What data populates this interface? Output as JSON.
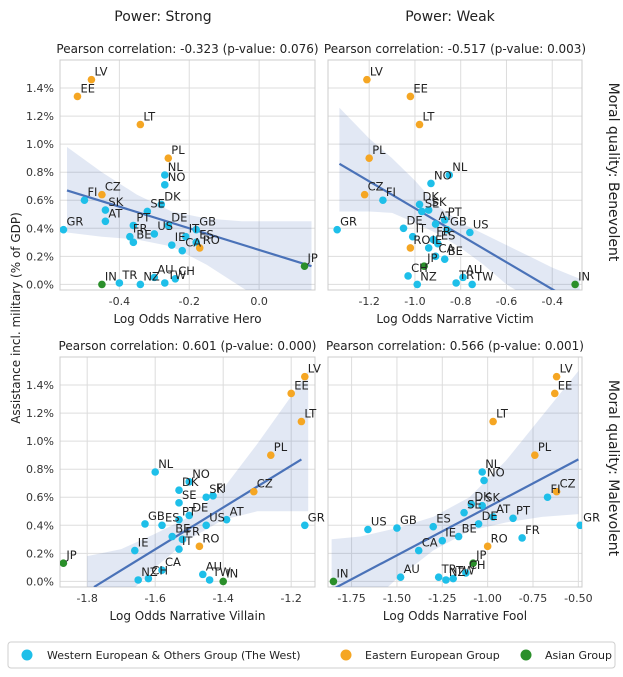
{
  "figure": {
    "col_titles": [
      "Power: Strong",
      "Power: Weak"
    ],
    "row_titles": [
      "Moral quality: Benevolent",
      "Moral quality: Malevolent"
    ],
    "ylabel": "Assistance incl. military (% of GDP)",
    "ylim": [
      -0.04,
      1.6
    ],
    "yticks": [
      0.0,
      0.2,
      0.4,
      0.6,
      0.8,
      1.0,
      1.2,
      1.4
    ],
    "ytick_labels": [
      "0.0%",
      "0.2%",
      "0.4%",
      "0.6%",
      "0.8%",
      "1.0%",
      "1.2%",
      "1.4%"
    ]
  },
  "legend": {
    "items": [
      {
        "label": "Western European & Others Group (The West)",
        "color": "#1ebfe9"
      },
      {
        "label": "Eastern European Group",
        "color": "#f5a623"
      },
      {
        "label": "Asian Group",
        "color": "#2a8f2a"
      }
    ]
  },
  "chart_data": [
    {
      "type": "scatter",
      "title": "Pearson correlation: -0.323 (p-value: 0.076)",
      "xlabel": "Log Odds Narrative Hero",
      "xlim": [
        -0.57,
        0.16
      ],
      "xticks": [
        -0.4,
        -0.2,
        0.0
      ],
      "xtick_labels": [
        "-0.4",
        "-0.2",
        "0.0"
      ],
      "regression": {
        "x0": -0.55,
        "y0": 0.67,
        "x1": 0.15,
        "y1": 0.13
      },
      "band": [
        [
          -0.55,
          0.98,
          0.37
        ],
        [
          -0.45,
          0.8,
          0.34
        ],
        [
          -0.35,
          0.64,
          0.32
        ],
        [
          -0.25,
          0.52,
          0.27
        ],
        [
          -0.15,
          0.47,
          0.14
        ],
        [
          -0.05,
          0.45,
          -0.02
        ],
        [
          0.05,
          0.45,
          -0.18
        ],
        [
          0.15,
          0.45,
          -0.33
        ]
      ],
      "points": [
        {
          "c": "LV",
          "x": -0.48,
          "y": 1.46,
          "g": 1
        },
        {
          "c": "EE",
          "x": -0.52,
          "y": 1.34,
          "g": 1
        },
        {
          "c": "LT",
          "x": -0.34,
          "y": 1.14,
          "g": 1
        },
        {
          "c": "PL",
          "x": -0.26,
          "y": 0.9,
          "g": 1
        },
        {
          "c": "NL",
          "x": -0.27,
          "y": 0.78,
          "g": 0
        },
        {
          "c": "NO",
          "x": -0.27,
          "y": 0.71,
          "g": 0
        },
        {
          "c": "CZ",
          "x": -0.45,
          "y": 0.64,
          "g": 1
        },
        {
          "c": "FI",
          "x": -0.5,
          "y": 0.6,
          "g": 0
        },
        {
          "c": "DK",
          "x": -0.28,
          "y": 0.57,
          "g": 0
        },
        {
          "c": "SK",
          "x": -0.44,
          "y": 0.53,
          "g": 0
        },
        {
          "c": "SE",
          "x": -0.32,
          "y": 0.52,
          "g": 0
        },
        {
          "c": "AT",
          "x": -0.44,
          "y": 0.45,
          "g": 0
        },
        {
          "c": "PT",
          "x": -0.36,
          "y": 0.42,
          "g": 0
        },
        {
          "c": "DE",
          "x": -0.26,
          "y": 0.42,
          "g": 0
        },
        {
          "c": "GB",
          "x": -0.18,
          "y": 0.39,
          "g": 0
        },
        {
          "c": "GR",
          "x": -0.56,
          "y": 0.39,
          "g": 0
        },
        {
          "c": "US",
          "x": -0.3,
          "y": 0.36,
          "g": 0
        },
        {
          "c": "FR",
          "x": -0.37,
          "y": 0.34,
          "g": 0
        },
        {
          "c": "IT",
          "x": -0.21,
          "y": 0.34,
          "g": 0
        },
        {
          "c": "BE",
          "x": -0.36,
          "y": 0.3,
          "g": 0
        },
        {
          "c": "ES",
          "x": -0.18,
          "y": 0.3,
          "g": 0
        },
        {
          "c": "IE",
          "x": -0.25,
          "y": 0.28,
          "g": 0
        },
        {
          "c": "RO",
          "x": -0.17,
          "y": 0.26,
          "g": 1
        },
        {
          "c": "CA",
          "x": -0.22,
          "y": 0.24,
          "g": 0
        },
        {
          "c": "AU",
          "x": -0.3,
          "y": 0.05,
          "g": 0
        },
        {
          "c": "CH",
          "x": -0.24,
          "y": 0.04,
          "g": 0
        },
        {
          "c": "TR",
          "x": -0.4,
          "y": 0.01,
          "g": 0
        },
        {
          "c": "NZ",
          "x": -0.34,
          "y": 0.0,
          "g": 0
        },
        {
          "c": "TW",
          "x": -0.27,
          "y": 0.01,
          "g": 0
        },
        {
          "c": "IN",
          "x": -0.45,
          "y": 0.0,
          "g": 2
        },
        {
          "c": "JP",
          "x": 0.13,
          "y": 0.13,
          "g": 2
        }
      ]
    },
    {
      "type": "scatter",
      "title": "Pearson correlation: -0.517 (p-value: 0.003)",
      "xlabel": "Log Odds Narrative Victim",
      "xlim": [
        -1.38,
        -0.27
      ],
      "xticks": [
        -1.2,
        -1.0,
        -0.8,
        -0.6,
        -0.4
      ],
      "xtick_labels": [
        "-1.2",
        "-1.0",
        "-0.8",
        "-0.6",
        "-0.4"
      ],
      "regression": {
        "x0": -1.33,
        "y0": 0.86,
        "x1": -0.28,
        "y1": -0.15
      },
      "band": [
        [
          -1.33,
          1.26,
          0.52
        ],
        [
          -1.2,
          1.04,
          0.52
        ],
        [
          -1.1,
          0.9,
          0.51
        ],
        [
          -1.0,
          0.74,
          0.44
        ],
        [
          -0.9,
          0.56,
          0.36
        ],
        [
          -0.8,
          0.44,
          0.26
        ],
        [
          -0.7,
          0.36,
          0.14
        ],
        [
          -0.6,
          0.28,
          0.0
        ],
        [
          -0.5,
          0.2,
          -0.1
        ],
        [
          -0.4,
          0.12,
          -0.2
        ],
        [
          -0.28,
          0.04,
          -0.3
        ]
      ],
      "points": [
        {
          "c": "LV",
          "x": -1.21,
          "y": 1.46,
          "g": 1
        },
        {
          "c": "EE",
          "x": -1.02,
          "y": 1.34,
          "g": 1
        },
        {
          "c": "LT",
          "x": -0.98,
          "y": 1.14,
          "g": 1
        },
        {
          "c": "PL",
          "x": -1.2,
          "y": 0.9,
          "g": 1
        },
        {
          "c": "NL",
          "x": -0.85,
          "y": 0.78,
          "g": 0
        },
        {
          "c": "NO",
          "x": -0.93,
          "y": 0.72,
          "g": 0
        },
        {
          "c": "CZ",
          "x": -1.22,
          "y": 0.64,
          "g": 1
        },
        {
          "c": "FI",
          "x": -1.14,
          "y": 0.6,
          "g": 0
        },
        {
          "c": "DK",
          "x": -0.98,
          "y": 0.57,
          "g": 0
        },
        {
          "c": "SK",
          "x": -0.94,
          "y": 0.53,
          "g": 0
        },
        {
          "c": "SE",
          "x": -0.97,
          "y": 0.52,
          "g": 0
        },
        {
          "c": "PT",
          "x": -0.87,
          "y": 0.46,
          "g": 0
        },
        {
          "c": "AT",
          "x": -0.91,
          "y": 0.43,
          "g": 0
        },
        {
          "c": "DE",
          "x": -1.05,
          "y": 0.4,
          "g": 0
        },
        {
          "c": "GB",
          "x": -0.86,
          "y": 0.39,
          "g": 0
        },
        {
          "c": "US",
          "x": -0.76,
          "y": 0.37,
          "g": 0
        },
        {
          "c": "GR",
          "x": -1.34,
          "y": 0.39,
          "g": 0
        },
        {
          "c": "IT",
          "x": -1.01,
          "y": 0.34,
          "g": 0
        },
        {
          "c": "FR",
          "x": -0.92,
          "y": 0.32,
          "g": 0
        },
        {
          "c": "ES",
          "x": -0.9,
          "y": 0.29,
          "g": 0
        },
        {
          "c": "RO",
          "x": -1.02,
          "y": 0.26,
          "g": 1
        },
        {
          "c": "IE",
          "x": -0.94,
          "y": 0.26,
          "g": 0
        },
        {
          "c": "CA",
          "x": -0.91,
          "y": 0.2,
          "g": 0
        },
        {
          "c": "BE",
          "x": -0.87,
          "y": 0.18,
          "g": 0
        },
        {
          "c": "CH",
          "x": -1.03,
          "y": 0.06,
          "g": 0
        },
        {
          "c": "JP",
          "x": -0.96,
          "y": 0.13,
          "g": 2
        },
        {
          "c": "AU",
          "x": -0.79,
          "y": 0.05,
          "g": 0
        },
        {
          "c": "NZ",
          "x": -0.99,
          "y": 0.0,
          "g": 0
        },
        {
          "c": "TR",
          "x": -0.82,
          "y": 0.01,
          "g": 0
        },
        {
          "c": "TW",
          "x": -0.75,
          "y": 0.0,
          "g": 0
        },
        {
          "c": "IN",
          "x": -0.3,
          "y": 0.0,
          "g": 2
        }
      ]
    },
    {
      "type": "scatter",
      "title": "Pearson correlation: 0.601 (p-value: 0.000)",
      "xlabel": "Log Odds Narrative Villain",
      "xlim": [
        -1.88,
        -1.13
      ],
      "xticks": [
        -1.8,
        -1.6,
        -1.4,
        -1.2
      ],
      "xtick_labels": [
        "-1.8",
        "-1.6",
        "-1.4",
        "-1.2"
      ],
      "regression": {
        "x0": -1.78,
        "y0": -0.04,
        "x1": -1.17,
        "y1": 0.87
      },
      "band": [
        [
          -1.8,
          0.18,
          -0.4
        ],
        [
          -1.7,
          0.23,
          -0.14
        ],
        [
          -1.6,
          0.34,
          0.1
        ],
        [
          -1.5,
          0.46,
          0.3
        ],
        [
          -1.4,
          0.66,
          0.44
        ],
        [
          -1.3,
          0.98,
          0.5
        ],
        [
          -1.2,
          1.32,
          0.5
        ],
        [
          -1.15,
          1.5,
          0.5
        ]
      ],
      "points": [
        {
          "c": "LV",
          "x": -1.16,
          "y": 1.46,
          "g": 1
        },
        {
          "c": "EE",
          "x": -1.2,
          "y": 1.34,
          "g": 1
        },
        {
          "c": "LT",
          "x": -1.17,
          "y": 1.14,
          "g": 1
        },
        {
          "c": "PL",
          "x": -1.26,
          "y": 0.9,
          "g": 1
        },
        {
          "c": "NL",
          "x": -1.6,
          "y": 0.78,
          "g": 0
        },
        {
          "c": "NO",
          "x": -1.5,
          "y": 0.71,
          "g": 0
        },
        {
          "c": "DK",
          "x": -1.53,
          "y": 0.65,
          "g": 0
        },
        {
          "c": "FI",
          "x": -1.43,
          "y": 0.61,
          "g": 0
        },
        {
          "c": "SK",
          "x": -1.45,
          "y": 0.6,
          "g": 0
        },
        {
          "c": "CZ",
          "x": -1.31,
          "y": 0.64,
          "g": 1
        },
        {
          "c": "SE",
          "x": -1.53,
          "y": 0.56,
          "g": 0
        },
        {
          "c": "DE",
          "x": -1.5,
          "y": 0.47,
          "g": 0
        },
        {
          "c": "PT",
          "x": -1.53,
          "y": 0.44,
          "g": 0
        },
        {
          "c": "AT",
          "x": -1.39,
          "y": 0.44,
          "g": 0
        },
        {
          "c": "GB",
          "x": -1.63,
          "y": 0.41,
          "g": 0
        },
        {
          "c": "ES",
          "x": -1.58,
          "y": 0.4,
          "g": 0
        },
        {
          "c": "US",
          "x": -1.45,
          "y": 0.4,
          "g": 0
        },
        {
          "c": "GR",
          "x": -1.16,
          "y": 0.4,
          "g": 0
        },
        {
          "c": "BE",
          "x": -1.55,
          "y": 0.32,
          "g": 0
        },
        {
          "c": "FR",
          "x": -1.52,
          "y": 0.3,
          "g": 0
        },
        {
          "c": "IE",
          "x": -1.66,
          "y": 0.22,
          "g": 0
        },
        {
          "c": "RO",
          "x": -1.47,
          "y": 0.25,
          "g": 1
        },
        {
          "c": "IT",
          "x": -1.53,
          "y": 0.23,
          "g": 0
        },
        {
          "c": "CA",
          "x": -1.58,
          "y": 0.08,
          "g": 0
        },
        {
          "c": "AU",
          "x": -1.46,
          "y": 0.05,
          "g": 0
        },
        {
          "c": "NZ",
          "x": -1.65,
          "y": 0.01,
          "g": 0
        },
        {
          "c": "CH",
          "x": -1.62,
          "y": 0.02,
          "g": 0
        },
        {
          "c": "TW",
          "x": -1.44,
          "y": 0.01,
          "g": 0
        },
        {
          "c": "IN",
          "x": -1.4,
          "y": 0.0,
          "g": 2
        },
        {
          "c": "JP",
          "x": -1.87,
          "y": 0.13,
          "g": 2
        }
      ]
    },
    {
      "type": "scatter",
      "title": "Pearson correlation: 0.566 (p-value: 0.001)",
      "xlabel": "Log Odds Narrative Fool",
      "xlim": [
        -1.88,
        -0.48
      ],
      "xticks": [
        -1.75,
        -1.5,
        -1.25,
        -1.0,
        -0.75,
        -0.5
      ],
      "xtick_labels": [
        "-1.75",
        "-1.50",
        "-1.25",
        "-1.00",
        "-0.75",
        "-0.50"
      ],
      "regression": {
        "x0": -1.86,
        "y0": -0.06,
        "x1": -0.5,
        "y1": 0.87
      },
      "band": [
        [
          -1.86,
          0.3,
          -0.45
        ],
        [
          -1.7,
          0.32,
          -0.22
        ],
        [
          -1.5,
          0.38,
          0.02
        ],
        [
          -1.3,
          0.46,
          0.22
        ],
        [
          -1.1,
          0.6,
          0.36
        ],
        [
          -0.9,
          0.86,
          0.42
        ],
        [
          -0.7,
          1.18,
          0.46
        ],
        [
          -0.5,
          1.5,
          0.48
        ]
      ],
      "points": [
        {
          "c": "LV",
          "x": -0.62,
          "y": 1.46,
          "g": 1
        },
        {
          "c": "EE",
          "x": -0.63,
          "y": 1.34,
          "g": 1
        },
        {
          "c": "LT",
          "x": -0.97,
          "y": 1.14,
          "g": 1
        },
        {
          "c": "PL",
          "x": -0.74,
          "y": 0.9,
          "g": 1
        },
        {
          "c": "NL",
          "x": -1.03,
          "y": 0.78,
          "g": 0
        },
        {
          "c": "NO",
          "x": -1.02,
          "y": 0.72,
          "g": 0
        },
        {
          "c": "FI",
          "x": -0.67,
          "y": 0.6,
          "g": 0
        },
        {
          "c": "CZ",
          "x": -0.62,
          "y": 0.64,
          "g": 1
        },
        {
          "c": "DK",
          "x": -1.09,
          "y": 0.55,
          "g": 0
        },
        {
          "c": "SK",
          "x": -1.03,
          "y": 0.54,
          "g": 0
        },
        {
          "c": "SE",
          "x": -1.13,
          "y": 0.49,
          "g": 0
        },
        {
          "c": "AT",
          "x": -0.97,
          "y": 0.46,
          "g": 0
        },
        {
          "c": "PT",
          "x": -0.86,
          "y": 0.45,
          "g": 0
        },
        {
          "c": "US",
          "x": -1.66,
          "y": 0.37,
          "g": 0
        },
        {
          "c": "GB",
          "x": -1.5,
          "y": 0.38,
          "g": 0
        },
        {
          "c": "ES",
          "x": -1.3,
          "y": 0.39,
          "g": 0
        },
        {
          "c": "DE",
          "x": -1.05,
          "y": 0.41,
          "g": 0
        },
        {
          "c": "GR",
          "x": -0.49,
          "y": 0.4,
          "g": 0
        },
        {
          "c": "FR",
          "x": -0.81,
          "y": 0.31,
          "g": 0
        },
        {
          "c": "BE",
          "x": -1.16,
          "y": 0.32,
          "g": 0
        },
        {
          "c": "IE",
          "x": -1.25,
          "y": 0.29,
          "g": 0
        },
        {
          "c": "RO",
          "x": -1.0,
          "y": 0.25,
          "g": 1
        },
        {
          "c": "CA",
          "x": -1.38,
          "y": 0.22,
          "g": 0
        },
        {
          "c": "JP",
          "x": -1.08,
          "y": 0.13,
          "g": 2
        },
        {
          "c": "CH",
          "x": -1.12,
          "y": 0.06,
          "g": 0
        },
        {
          "c": "TR",
          "x": -1.27,
          "y": 0.03,
          "g": 0
        },
        {
          "c": "AU",
          "x": -1.48,
          "y": 0.03,
          "g": 0
        },
        {
          "c": "NZ",
          "x": -1.23,
          "y": 0.01,
          "g": 0
        },
        {
          "c": "TW",
          "x": -1.19,
          "y": 0.02,
          "g": 0
        },
        {
          "c": "IN",
          "x": -1.85,
          "y": 0.0,
          "g": 2
        }
      ]
    }
  ]
}
